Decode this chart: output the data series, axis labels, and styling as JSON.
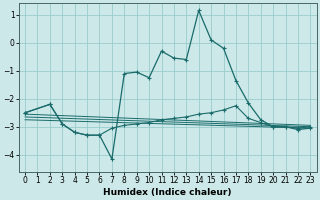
{
  "xlabel": "Humidex (Indice chaleur)",
  "background_color": "#cce8e8",
  "grid_color": "#99cccc",
  "line_color": "#1a6b6b",
  "xlim": [
    -0.5,
    23.5
  ],
  "ylim": [
    -4.6,
    1.4
  ],
  "yticks": [
    1,
    0,
    -1,
    -2,
    -3,
    -4
  ],
  "xticks": [
    0,
    1,
    2,
    3,
    4,
    5,
    6,
    7,
    8,
    9,
    10,
    11,
    12,
    13,
    14,
    15,
    16,
    17,
    18,
    19,
    20,
    21,
    22,
    23
  ],
  "series": [
    {
      "x": [
        0,
        2,
        3,
        4,
        5,
        6,
        7,
        8,
        9,
        10,
        11,
        12,
        13,
        14,
        15,
        16,
        17,
        18,
        19,
        20,
        21,
        22,
        23
      ],
      "y": [
        -2.5,
        -2.2,
        -2.9,
        -3.2,
        -3.3,
        -3.3,
        -4.15,
        -1.1,
        -1.05,
        -1.25,
        -0.3,
        -0.55,
        -0.6,
        1.15,
        0.1,
        -0.2,
        -1.35,
        -2.15,
        -2.75,
        -3.0,
        -3.0,
        -3.1,
        -3.05
      ]
    },
    {
      "x": [
        0,
        2,
        3,
        4,
        5,
        6,
        7,
        8,
        9,
        10,
        11,
        12,
        13,
        14,
        15,
        16,
        17,
        18,
        19,
        20,
        21,
        22,
        23
      ],
      "y": [
        -2.5,
        -2.2,
        -2.9,
        -3.2,
        -3.3,
        -3.3,
        -3.05,
        -2.95,
        -2.9,
        -2.85,
        -2.75,
        -2.7,
        -2.65,
        -2.55,
        -2.5,
        -2.4,
        -2.25,
        -2.7,
        -2.85,
        -3.0,
        -3.0,
        -3.05,
        -3.0
      ]
    },
    {
      "x": [
        0,
        23
      ],
      "y": [
        -2.55,
        -2.95
      ]
    },
    {
      "x": [
        0,
        23
      ],
      "y": [
        -2.65,
        -3.0
      ]
    },
    {
      "x": [
        0,
        23
      ],
      "y": [
        -2.75,
        -3.05
      ]
    }
  ]
}
